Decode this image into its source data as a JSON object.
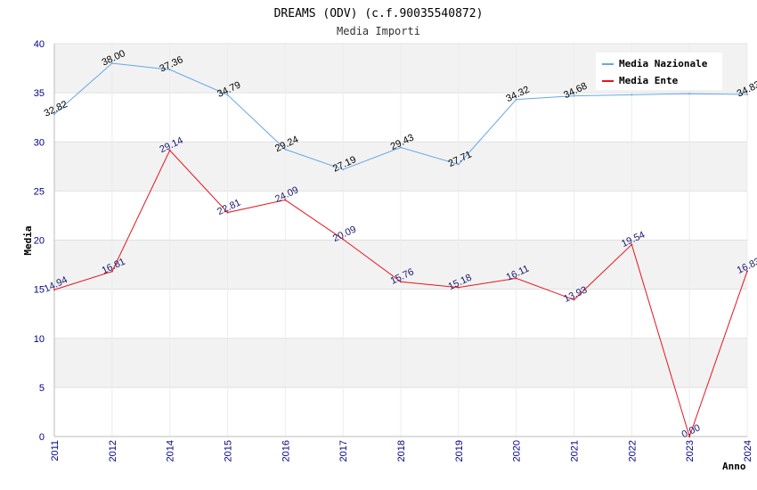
{
  "colors": {
    "nazionale": "#64a8e8",
    "ente": "#e8141e",
    "nazionale_label": "#000000",
    "ente_label": "#191970",
    "band": "#f2f2f2",
    "grid": "#e0e0e0"
  },
  "chart_data": {
    "type": "line",
    "title": "DREAMS (ODV) (c.f.90035540872)",
    "subtitle": "Media Importi",
    "xlabel": "Anno",
    "ylabel": "Media",
    "ylim": [
      0,
      40
    ],
    "yticks": [
      0,
      5,
      10,
      15,
      20,
      25,
      30,
      35,
      40
    ],
    "grid": true,
    "legend_position": "top-right",
    "categories": [
      "2011",
      "2012",
      "2014",
      "2015",
      "2016",
      "2017",
      "2018",
      "2019",
      "2020",
      "2021",
      "2022",
      "2023",
      "2024"
    ],
    "series": [
      {
        "name": "Media Nazionale",
        "color_key": "nazionale",
        "values": [
          32.82,
          38.0,
          37.36,
          34.79,
          29.24,
          27.19,
          29.43,
          27.71,
          34.32,
          34.68,
          34.8,
          34.9,
          34.83
        ],
        "labels": [
          "32.82",
          "38.00",
          "37.36",
          "34.79",
          "29.24",
          "27.19",
          "29.43",
          "27.71",
          "34.32",
          "34.68",
          "",
          "",
          "34.83"
        ]
      },
      {
        "name": "Media Ente",
        "color_key": "ente",
        "values": [
          14.94,
          16.81,
          29.14,
          22.81,
          24.09,
          20.09,
          15.76,
          15.18,
          16.11,
          13.93,
          19.54,
          0.0,
          16.83
        ],
        "labels": [
          "14.94",
          "16.81",
          "29.14",
          "22.81",
          "24.09",
          "20.09",
          "15.76",
          "15.18",
          "16.11",
          "13.93",
          "19.54",
          "0.00",
          "16.83"
        ]
      }
    ]
  }
}
